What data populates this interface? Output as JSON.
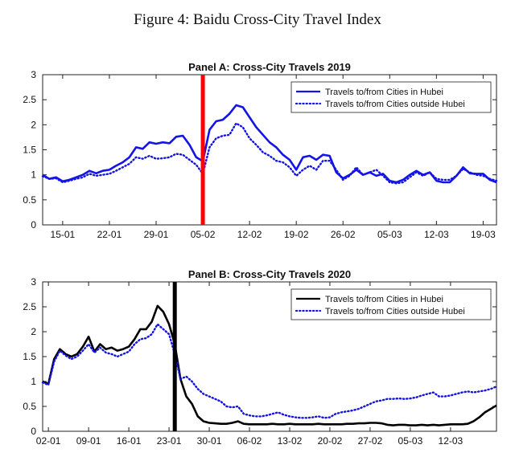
{
  "figure": {
    "title": "Figure 4: Baidu Cross-City Travel Index"
  },
  "colors": {
    "panel_a": "#1414e6",
    "panel_b": "#000000",
    "panel_b_outside": "#1414e6",
    "marker_a": "#ff0000",
    "marker_b": "#000000"
  },
  "chart_data": [
    {
      "type": "line",
      "title": "Panel A: Cross-City Travels 2019",
      "xlabel": "",
      "ylabel": "",
      "x_unit": "day",
      "xlim": [
        12,
        80
      ],
      "ylim": [
        0,
        3
      ],
      "yticks": [
        0,
        0.5,
        1,
        1.5,
        2,
        2.5,
        3
      ],
      "ytick_labels": [
        "0",
        "0.5",
        "1",
        "1.5",
        "2",
        "2.5",
        "3"
      ],
      "xticks": [
        15,
        22,
        29,
        36,
        43,
        50,
        57,
        64,
        71,
        78
      ],
      "xtick_labels": [
        "15-01",
        "22-01",
        "29-01",
        "05-02",
        "12-02",
        "19-02",
        "26-02",
        "05-03",
        "12-03",
        "19-03"
      ],
      "marker": {
        "x": 36
      },
      "legend_position": "top-right",
      "grid": false,
      "series": [
        {
          "name": "Travels to/from Cities in Hubei",
          "style": "solid",
          "x": [
            12,
            13,
            14,
            15,
            16,
            17,
            18,
            19,
            20,
            21,
            22,
            23,
            24,
            25,
            26,
            27,
            28,
            29,
            30,
            31,
            32,
            33,
            34,
            35,
            36,
            37,
            38,
            39,
            40,
            41,
            42,
            43,
            44,
            45,
            46,
            47,
            48,
            49,
            50,
            51,
            52,
            53,
            54,
            55,
            56,
            57,
            58,
            59,
            60,
            61,
            62,
            63,
            64,
            65,
            66,
            67,
            68,
            69,
            70,
            71,
            72,
            73,
            74,
            75,
            76,
            77,
            78,
            79,
            80
          ],
          "y": [
            1.0,
            0.92,
            0.95,
            0.87,
            0.9,
            0.95,
            1.0,
            1.08,
            1.03,
            1.08,
            1.1,
            1.18,
            1.25,
            1.35,
            1.55,
            1.52,
            1.65,
            1.62,
            1.65,
            1.63,
            1.76,
            1.78,
            1.6,
            1.35,
            1.27,
            1.9,
            2.07,
            2.1,
            2.22,
            2.39,
            2.35,
            2.15,
            1.95,
            1.8,
            1.65,
            1.55,
            1.4,
            1.3,
            1.1,
            1.35,
            1.38,
            1.3,
            1.4,
            1.38,
            1.05,
            0.93,
            1.0,
            1.1,
            1.0,
            1.05,
            0.98,
            1.02,
            0.88,
            0.85,
            0.9,
            1.0,
            1.08,
            1.0,
            1.05,
            0.88,
            0.85,
            0.85,
            0.98,
            1.15,
            1.03,
            1.02,
            1.02,
            0.9,
            0.85
          ]
        },
        {
          "name": "Travels to/from Cities outside Hubei",
          "style": "dotted",
          "x": [
            12,
            13,
            14,
            15,
            16,
            17,
            18,
            19,
            20,
            21,
            22,
            23,
            24,
            25,
            26,
            27,
            28,
            29,
            30,
            31,
            32,
            33,
            34,
            35,
            36,
            37,
            38,
            39,
            40,
            41,
            42,
            43,
            44,
            45,
            46,
            47,
            48,
            49,
            50,
            51,
            52,
            53,
            54,
            55,
            56,
            57,
            58,
            59,
            60,
            61,
            62,
            63,
            64,
            65,
            66,
            67,
            68,
            69,
            70,
            71,
            72,
            73,
            74,
            75,
            76,
            77,
            78,
            79,
            80
          ],
          "y": [
            0.97,
            0.92,
            0.93,
            0.85,
            0.88,
            0.92,
            0.95,
            1.02,
            0.98,
            1.0,
            1.02,
            1.08,
            1.15,
            1.22,
            1.35,
            1.32,
            1.38,
            1.32,
            1.33,
            1.35,
            1.42,
            1.4,
            1.3,
            1.2,
            1.02,
            1.55,
            1.73,
            1.78,
            1.8,
            2.03,
            1.95,
            1.73,
            1.6,
            1.45,
            1.38,
            1.28,
            1.25,
            1.15,
            0.98,
            1.1,
            1.18,
            1.1,
            1.28,
            1.28,
            1.1,
            0.9,
            0.98,
            1.15,
            1.0,
            1.05,
            1.1,
            0.98,
            0.85,
            0.83,
            0.85,
            0.95,
            1.05,
            0.98,
            1.05,
            0.92,
            0.9,
            0.9,
            0.98,
            1.12,
            1.05,
            1.0,
            0.98,
            0.92,
            0.88
          ]
        }
      ]
    },
    {
      "type": "line",
      "title": "Panel B: Cross-City Travels 2020",
      "xlabel": "",
      "ylabel": "",
      "x_unit": "day",
      "xlim": [
        1,
        80
      ],
      "ylim": [
        0,
        3
      ],
      "yticks": [
        0,
        0.5,
        1,
        1.5,
        2,
        2.5,
        3
      ],
      "ytick_labels": [
        "0",
        "0.5",
        "1",
        "1.5",
        "2",
        "2.5",
        "3"
      ],
      "xticks": [
        2,
        9,
        16,
        23,
        30,
        37,
        44,
        51,
        58,
        65,
        72
      ],
      "xtick_labels": [
        "02-01",
        "09-01",
        "16-01",
        "23-01",
        "30-01",
        "06-02",
        "13-02",
        "20-02",
        "27-02",
        "05-03",
        "12-03"
      ],
      "marker": {
        "x": 24
      },
      "legend_position": "top-right",
      "grid": false,
      "series": [
        {
          "name": "Travels to/from Cities in Hubei",
          "style": "solid",
          "x": [
            1,
            2,
            3,
            4,
            5,
            6,
            7,
            8,
            9,
            10,
            11,
            12,
            13,
            14,
            15,
            16,
            17,
            18,
            19,
            20,
            21,
            22,
            23,
            24,
            25,
            26,
            27,
            28,
            29,
            30,
            31,
            32,
            33,
            34,
            35,
            36,
            37,
            38,
            39,
            40,
            41,
            42,
            43,
            44,
            45,
            46,
            47,
            48,
            49,
            50,
            51,
            52,
            53,
            54,
            55,
            56,
            57,
            58,
            59,
            60,
            61,
            62,
            63,
            64,
            65,
            66,
            67,
            68,
            69,
            70,
            71,
            72,
            73,
            74,
            75,
            76,
            77,
            78,
            79,
            80
          ],
          "y": [
            1.0,
            0.95,
            1.45,
            1.65,
            1.55,
            1.5,
            1.55,
            1.7,
            1.9,
            1.6,
            1.75,
            1.65,
            1.68,
            1.62,
            1.65,
            1.7,
            1.85,
            2.05,
            2.05,
            2.2,
            2.52,
            2.4,
            2.15,
            1.75,
            1.05,
            0.7,
            0.55,
            0.3,
            0.2,
            0.17,
            0.16,
            0.15,
            0.15,
            0.17,
            0.2,
            0.15,
            0.14,
            0.14,
            0.14,
            0.14,
            0.15,
            0.14,
            0.14,
            0.15,
            0.14,
            0.14,
            0.14,
            0.14,
            0.15,
            0.14,
            0.14,
            0.14,
            0.14,
            0.15,
            0.15,
            0.16,
            0.16,
            0.17,
            0.17,
            0.16,
            0.13,
            0.12,
            0.13,
            0.13,
            0.12,
            0.12,
            0.13,
            0.12,
            0.13,
            0.12,
            0.13,
            0.14,
            0.14,
            0.14,
            0.15,
            0.2,
            0.28,
            0.38,
            0.45,
            0.52
          ]
        },
        {
          "name": "Travels to/from Cities outside Hubei",
          "style": "dotted",
          "x": [
            1,
            2,
            3,
            4,
            5,
            6,
            7,
            8,
            9,
            10,
            11,
            12,
            13,
            14,
            15,
            16,
            17,
            18,
            19,
            20,
            21,
            22,
            23,
            24,
            25,
            26,
            27,
            28,
            29,
            30,
            31,
            32,
            33,
            34,
            35,
            36,
            37,
            38,
            39,
            40,
            41,
            42,
            43,
            44,
            45,
            46,
            47,
            48,
            49,
            50,
            51,
            52,
            53,
            54,
            55,
            56,
            57,
            58,
            59,
            60,
            61,
            62,
            63,
            64,
            65,
            66,
            67,
            68,
            69,
            70,
            71,
            72,
            73,
            74,
            75,
            76,
            77,
            78,
            79,
            80
          ],
          "y": [
            0.98,
            0.93,
            1.4,
            1.62,
            1.52,
            1.45,
            1.5,
            1.62,
            1.75,
            1.58,
            1.68,
            1.58,
            1.55,
            1.5,
            1.55,
            1.6,
            1.75,
            1.85,
            1.87,
            1.95,
            2.15,
            2.05,
            1.95,
            1.55,
            1.05,
            1.1,
            1.0,
            0.85,
            0.75,
            0.7,
            0.65,
            0.6,
            0.5,
            0.48,
            0.5,
            0.35,
            0.32,
            0.3,
            0.3,
            0.32,
            0.35,
            0.38,
            0.33,
            0.3,
            0.28,
            0.27,
            0.27,
            0.28,
            0.3,
            0.27,
            0.28,
            0.35,
            0.38,
            0.4,
            0.42,
            0.45,
            0.5,
            0.55,
            0.6,
            0.62,
            0.65,
            0.65,
            0.66,
            0.65,
            0.66,
            0.68,
            0.72,
            0.75,
            0.78,
            0.7,
            0.7,
            0.72,
            0.75,
            0.78,
            0.8,
            0.78,
            0.8,
            0.82,
            0.85,
            0.9
          ]
        }
      ]
    }
  ]
}
